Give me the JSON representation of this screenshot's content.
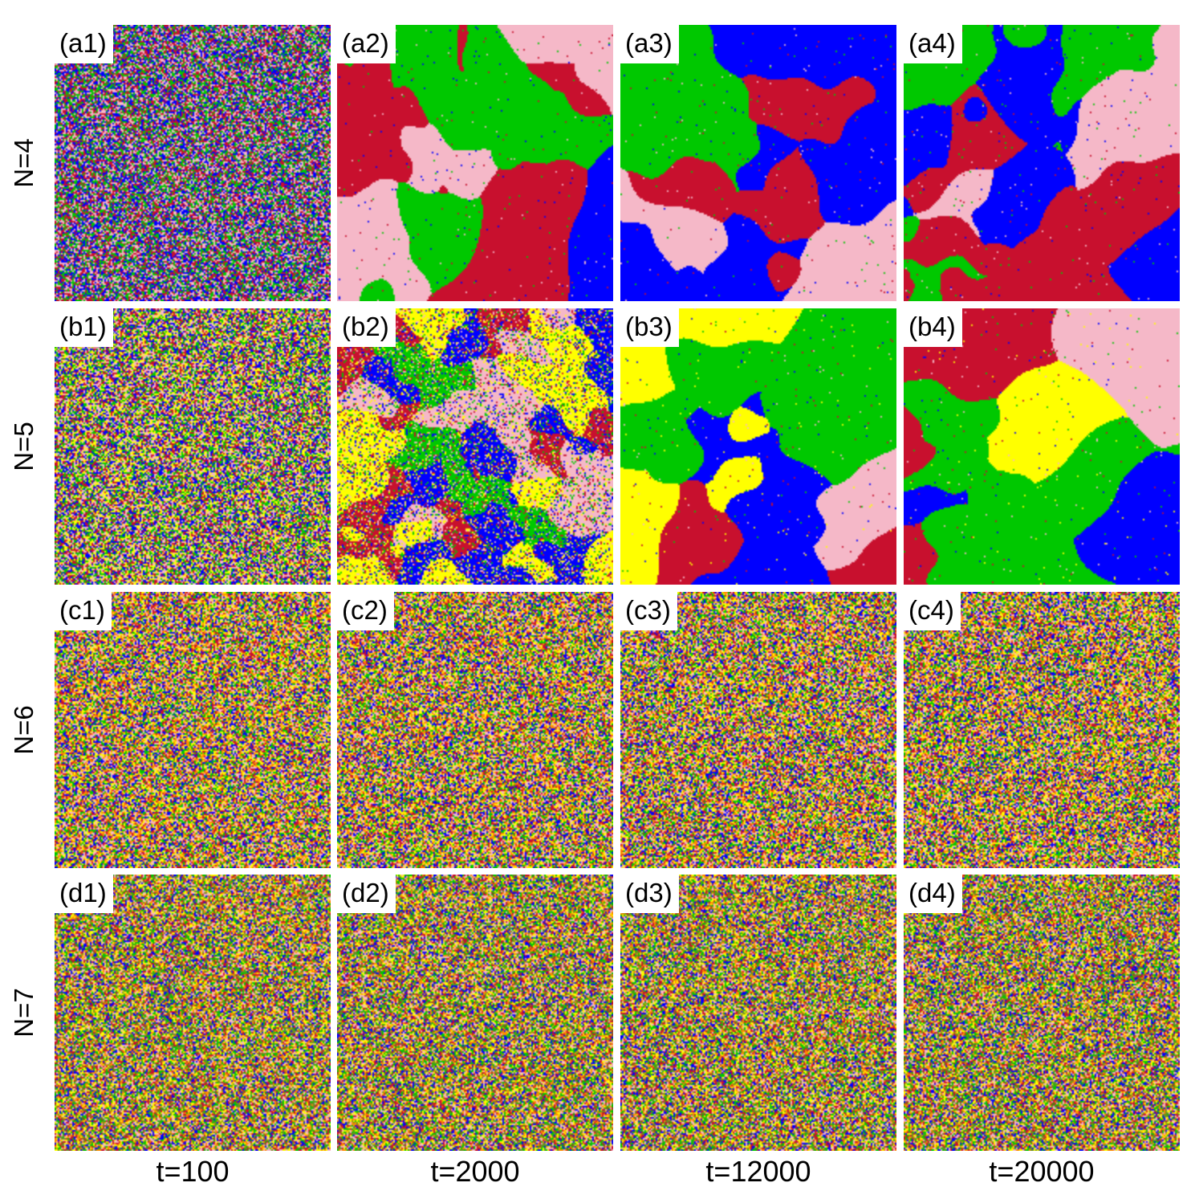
{
  "figure": {
    "row_labels": [
      "N=4",
      "N=5",
      "N=6",
      "N=7"
    ],
    "column_labels": [
      "t=100",
      "t=2000",
      "t=12000",
      "t=20000"
    ],
    "panels": [
      [
        {
          "label": "(a1)"
        },
        {
          "label": "(a2)"
        },
        {
          "label": "(a3)"
        },
        {
          "label": "(a4)"
        }
      ],
      [
        {
          "label": "(b1)"
        },
        {
          "label": "(b2)"
        },
        {
          "label": "(b3)"
        },
        {
          "label": "(b4)"
        }
      ],
      [
        {
          "label": "(c1)"
        },
        {
          "label": "(c2)"
        },
        {
          "label": "(c3)"
        },
        {
          "label": "(c4)"
        }
      ],
      [
        {
          "label": "(d1)"
        },
        {
          "label": "(d2)"
        },
        {
          "label": "(d3)"
        },
        {
          "label": "(d4)"
        }
      ]
    ],
    "species_colors": [
      "#0000ff",
      "#c8102e",
      "#00c800",
      "#f5b8c8",
      "#ffff00",
      "#ff8c00",
      "#6b8e23"
    ],
    "species_per_row": [
      4,
      5,
      6,
      7
    ],
    "pattern_style": [
      [
        "noisy",
        "domains",
        "domains",
        "domains"
      ],
      [
        "noisy",
        "coarsening",
        "domains",
        "domains"
      ],
      [
        "noisy",
        "noisy",
        "noisy",
        "noisy"
      ],
      [
        "noisy",
        "noisy",
        "noisy",
        "noisy"
      ]
    ]
  }
}
